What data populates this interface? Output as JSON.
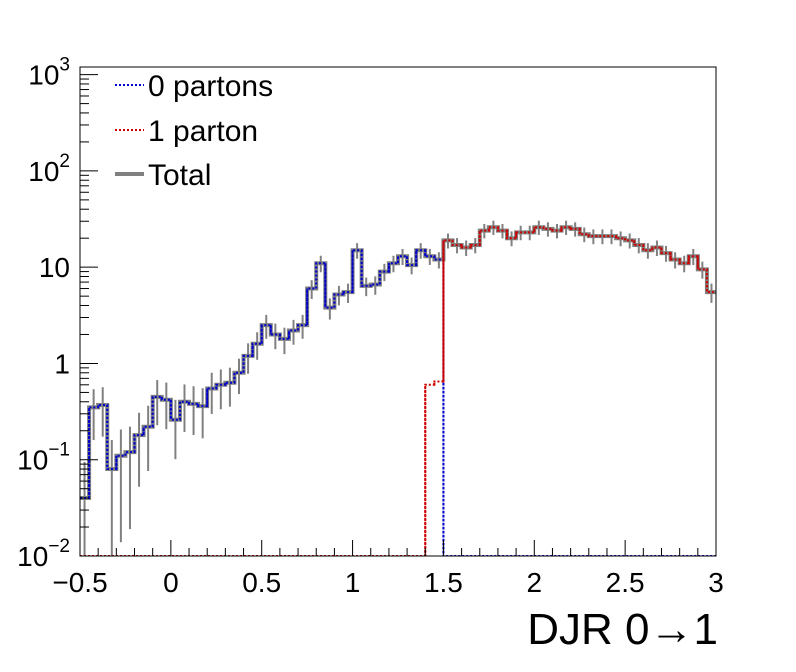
{
  "chart_data": {
    "type": "line",
    "xlabel": "DJR 0→1",
    "ylabel": "",
    "xlim": [
      -0.5,
      3.0
    ],
    "ylim": [
      0.01,
      1200
    ],
    "yscale": "log",
    "grid": false,
    "legend_position": "top-left",
    "x_ticks": [
      {
        "value": -0.5,
        "label": "−0.5"
      },
      {
        "value": 0,
        "label": "0"
      },
      {
        "value": 0.5,
        "label": "0.5"
      },
      {
        "value": 1,
        "label": "1"
      },
      {
        "value": 1.5,
        "label": "1.5"
      },
      {
        "value": 2,
        "label": "2"
      },
      {
        "value": 2.5,
        "label": "2.5"
      },
      {
        "value": 3,
        "label": "3"
      }
    ],
    "y_ticks": [
      {
        "value": 0.01,
        "base": "10",
        "exp": "−2"
      },
      {
        "value": 0.1,
        "base": "10",
        "exp": "−1"
      },
      {
        "value": 1,
        "base": "1",
        "exp": ""
      },
      {
        "value": 10,
        "base": "10",
        "exp": ""
      },
      {
        "value": 100,
        "base": "10",
        "exp": "2"
      },
      {
        "value": 1000,
        "base": "10",
        "exp": "3"
      }
    ],
    "bin_edges": [
      -0.5,
      3.0
    ],
    "n_bins": 70,
    "series": [
      {
        "name": "0 partons",
        "color": "#0000cc",
        "style": "dotted",
        "values": [
          0.04,
          0.35,
          0.37,
          0.08,
          0.11,
          0.12,
          0.18,
          0.22,
          0.45,
          0.42,
          0.26,
          0.4,
          0.38,
          0.36,
          0.55,
          0.6,
          0.63,
          0.8,
          1.2,
          1.6,
          2.5,
          2.0,
          1.8,
          2.2,
          2.5,
          6.0,
          11.0,
          3.8,
          5.2,
          5.5,
          15.0,
          6.4,
          6.6,
          9.0,
          11.0,
          13.0,
          10.5,
          15.0,
          13.0,
          12.0,
          0.01,
          0.01,
          0.01,
          0.01,
          0.01,
          0.01,
          0.01,
          0.01,
          0.01,
          0.01,
          0.01,
          0.01,
          0.01,
          0.01,
          0.01,
          0.01,
          0.01,
          0.01,
          0.01,
          0.01,
          0.01,
          0.01,
          0.01,
          0.01,
          0.01,
          0.01,
          0.01,
          0.01,
          0.01,
          0.01
        ]
      },
      {
        "name": "1 parton",
        "color": "#cc0000",
        "style": "dotted",
        "values": [
          0.01,
          0.01,
          0.01,
          0.01,
          0.01,
          0.01,
          0.01,
          0.01,
          0.01,
          0.01,
          0.01,
          0.01,
          0.01,
          0.01,
          0.01,
          0.01,
          0.01,
          0.01,
          0.01,
          0.01,
          0.01,
          0.01,
          0.01,
          0.01,
          0.01,
          0.01,
          0.01,
          0.01,
          0.01,
          0.01,
          0.01,
          0.01,
          0.01,
          0.01,
          0.01,
          0.01,
          0.01,
          0.01,
          0.6,
          0.65,
          19.0,
          17.0,
          16.0,
          17.0,
          24.0,
          26.0,
          24.0,
          20.0,
          23.0,
          23.0,
          26.0,
          25.0,
          24.0,
          26.0,
          25.0,
          22.0,
          21.0,
          21.0,
          21.0,
          20.0,
          19.0,
          17.0,
          15.0,
          16.0,
          14.0,
          12.0,
          11.0,
          13.0,
          9.5,
          5.5
        ]
      },
      {
        "name": "Total",
        "color": "#808080",
        "style": "solid",
        "values": [
          0.04,
          0.35,
          0.37,
          0.08,
          0.11,
          0.12,
          0.18,
          0.22,
          0.45,
          0.42,
          0.26,
          0.4,
          0.38,
          0.36,
          0.55,
          0.6,
          0.63,
          0.8,
          1.2,
          1.6,
          2.5,
          2.0,
          1.8,
          2.2,
          2.5,
          6.0,
          11.0,
          3.8,
          5.2,
          5.5,
          15.0,
          6.4,
          6.6,
          9.0,
          11.0,
          13.0,
          10.5,
          15.0,
          13.0,
          12.0,
          19.0,
          17.0,
          16.0,
          17.0,
          24.0,
          26.0,
          24.0,
          20.0,
          23.0,
          23.0,
          26.0,
          25.0,
          24.0,
          26.0,
          25.0,
          22.0,
          21.0,
          21.0,
          21.0,
          20.0,
          19.0,
          17.0,
          15.0,
          16.0,
          14.0,
          12.0,
          11.0,
          13.0,
          9.5,
          5.5
        ]
      }
    ]
  }
}
